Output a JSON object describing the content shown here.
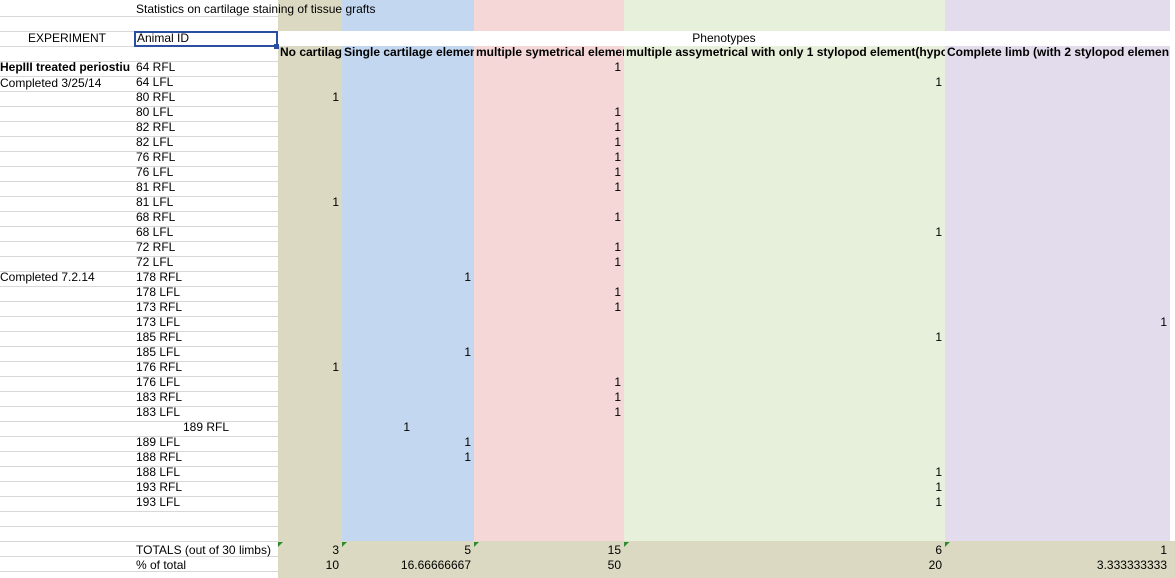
{
  "sheet": {
    "title": "Statistics on cartilage staining of tissue grafts",
    "experiment_label": "EXPERIMENT",
    "animal_id_label": "Animal ID",
    "phenotypes_label": "Phenotypes",
    "experiment_groups": [
      "HepIII treated periostiu",
      "Completed 3/25/14",
      "Completed 7.2.14"
    ],
    "columns": [
      "No cartilag",
      "Single cartilage elemen",
      "multiple symetrical elemen",
      "multiple assymetrical with only 1 stylopod element(hypo",
      "Complete limb (with 2 stylopod elemen"
    ],
    "rows": [
      {
        "id": "64 RFL",
        "v": [
          "",
          "",
          "1",
          "",
          ""
        ]
      },
      {
        "id": "64 LFL",
        "v": [
          "",
          "",
          "",
          "1",
          ""
        ]
      },
      {
        "id": "80 RFL",
        "v": [
          "1",
          "",
          "",
          "",
          ""
        ]
      },
      {
        "id": "80 LFL",
        "v": [
          "",
          "",
          "1",
          "",
          ""
        ]
      },
      {
        "id": "82 RFL",
        "v": [
          "",
          "",
          "1",
          "",
          ""
        ]
      },
      {
        "id": "82 LFL",
        "v": [
          "",
          "",
          "1",
          "",
          ""
        ]
      },
      {
        "id": "76 RFL",
        "v": [
          "",
          "",
          "1",
          "",
          ""
        ]
      },
      {
        "id": "76 LFL",
        "v": [
          "",
          "",
          "1",
          "",
          ""
        ]
      },
      {
        "id": "81 RFL",
        "v": [
          "",
          "",
          "1",
          "",
          ""
        ]
      },
      {
        "id": "81 LFL",
        "v": [
          "1",
          "",
          "",
          "",
          ""
        ]
      },
      {
        "id": "68 RFL",
        "v": [
          "",
          "",
          "1",
          "",
          ""
        ]
      },
      {
        "id": "68 LFL",
        "v": [
          "",
          "",
          "",
          "1",
          ""
        ]
      },
      {
        "id": "72 RFL",
        "v": [
          "",
          "",
          "1",
          "",
          ""
        ]
      },
      {
        "id": "72 LFL",
        "v": [
          "",
          "",
          "1",
          "",
          ""
        ]
      },
      {
        "id": "178 RFL",
        "v": [
          "",
          "1",
          "",
          "",
          ""
        ]
      },
      {
        "id": "178 LFL",
        "v": [
          "",
          "",
          "1",
          "",
          ""
        ]
      },
      {
        "id": "173 RFL",
        "v": [
          "",
          "",
          "1",
          "",
          ""
        ]
      },
      {
        "id": "173 LFL",
        "v": [
          "",
          "",
          "",
          "",
          "1"
        ]
      },
      {
        "id": "185 RFL",
        "v": [
          "",
          "",
          "",
          "1",
          ""
        ]
      },
      {
        "id": "185 LFL",
        "v": [
          "",
          "1",
          "",
          "",
          ""
        ]
      },
      {
        "id": "176 RFL",
        "v": [
          "1",
          "",
          "",
          "",
          ""
        ]
      },
      {
        "id": "176 LFL",
        "v": [
          "",
          "",
          "1",
          "",
          ""
        ]
      },
      {
        "id": "183 RFL",
        "v": [
          "",
          "",
          "1",
          "",
          ""
        ]
      },
      {
        "id": "183 LFL",
        "v": [
          "",
          "",
          "1",
          "",
          ""
        ]
      },
      {
        "id": "189 RFL",
        "v": [
          "",
          "1",
          "",
          "",
          ""
        ]
      },
      {
        "id": "189 LFL",
        "v": [
          "",
          "1",
          "",
          "",
          ""
        ]
      },
      {
        "id": "188 RFL",
        "v": [
          "",
          "1",
          "",
          "",
          ""
        ]
      },
      {
        "id": "188 LFL",
        "v": [
          "",
          "",
          "",
          "1",
          ""
        ]
      },
      {
        "id": "193 RFL",
        "v": [
          "",
          "",
          "",
          "1",
          ""
        ]
      },
      {
        "id": "193 LFL",
        "v": [
          "",
          "",
          "",
          "1",
          ""
        ]
      }
    ],
    "totals_label": "TOTALS (out of 30 limbs)",
    "totals": [
      "3",
      "5",
      "15",
      "6",
      "1"
    ],
    "percent_label": "% of total",
    "percent": [
      "10",
      "16.66666667",
      "50",
      "20",
      "3.333333333"
    ],
    "column_colors": [
      "#dcd9c3",
      "#c3d7f0",
      "#f5d7d8",
      "#e7f0da",
      "#e3dcec"
    ]
  }
}
